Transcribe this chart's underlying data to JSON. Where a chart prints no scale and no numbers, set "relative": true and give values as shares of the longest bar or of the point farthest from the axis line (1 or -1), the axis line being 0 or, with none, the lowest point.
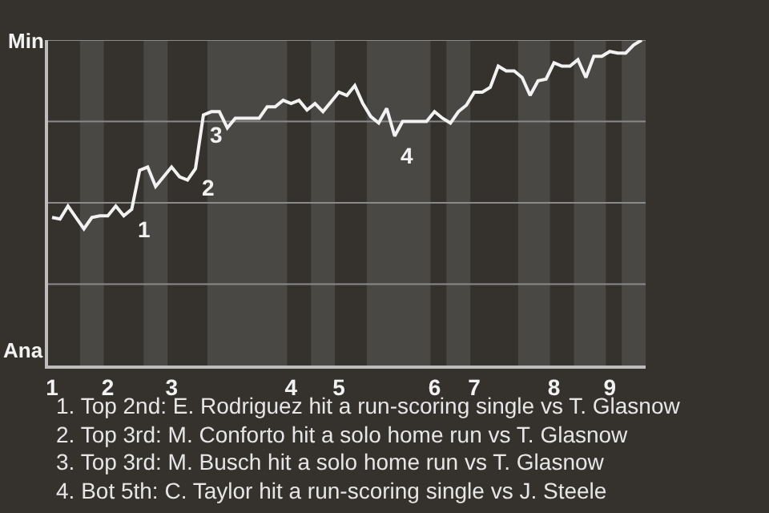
{
  "chart_data": {
    "type": "line",
    "relative": true,
    "categories": [
      "1",
      null,
      null,
      null,
      null,
      null,
      null,
      "2",
      null,
      null,
      null,
      null,
      null,
      null,
      null,
      "3",
      null,
      null,
      null,
      null,
      null,
      null,
      null,
      null,
      null,
      null,
      null,
      null,
      null,
      null,
      "4",
      null,
      null,
      null,
      null,
      null,
      "5",
      null,
      null,
      null,
      null,
      null,
      null,
      null,
      null,
      null,
      null,
      null,
      "6",
      null,
      null,
      null,
      null,
      "7",
      null,
      null,
      null,
      null,
      null,
      null,
      null,
      null,
      null,
      "8",
      null,
      null,
      null,
      null,
      null,
      null,
      "9",
      null,
      null,
      null,
      null
    ],
    "series": [
      {
        "color": "#f2f2f2",
        "values": [
          0.455,
          0.45,
          0.49,
          0.455,
          0.42,
          0.455,
          0.46,
          0.46,
          0.49,
          0.46,
          0.48,
          0.6,
          0.61,
          0.55,
          0.58,
          0.61,
          0.58,
          0.57,
          0.605,
          0.77,
          0.78,
          0.78,
          0.73,
          0.76,
          0.76,
          0.76,
          0.76,
          0.795,
          0.795,
          0.815,
          0.805,
          0.815,
          0.785,
          0.805,
          0.78,
          0.81,
          0.84,
          0.83,
          0.86,
          0.805,
          0.765,
          0.745,
          0.79,
          0.705,
          0.75,
          0.75,
          0.75,
          0.75,
          0.78,
          0.76,
          0.745,
          0.78,
          0.8,
          0.84,
          0.84,
          0.855,
          0.92,
          0.905,
          0.905,
          0.885,
          0.83,
          0.875,
          0.88,
          0.93,
          0.92,
          0.92,
          0.94,
          0.885,
          0.95,
          0.95,
          0.965,
          0.96,
          0.96,
          0.985,
          1
        ],
        "line_style": "solid"
      }
    ],
    "marker": "none",
    "ref_lines": [
      {
        "axis": "y",
        "value": 0.25,
        "color": "#8a8a8a"
      },
      {
        "axis": "y",
        "value": 0.5,
        "color": "#8a8a8a"
      },
      {
        "axis": "y",
        "value": 0.75,
        "color": "#8a8a8a"
      },
      {
        "axis": "y",
        "value": 1,
        "color": "#8a8a8a"
      }
    ],
    "annotations": [
      "Min",
      "Ana",
      "1",
      "2",
      "3",
      "4",
      "1. Top 2nd: E. Rodriguez hit a run-scoring single vs T. Glasnow",
      "2. Top 3rd: M. Conforto hit a solo home run vs T. Glasnow",
      "3. Top 3rd: M. Busch hit a solo home run vs T. Glasnow",
      "4. Bot 5th: C. Taylor hit a run-scoring single vs J. Steele"
    ]
  }
}
